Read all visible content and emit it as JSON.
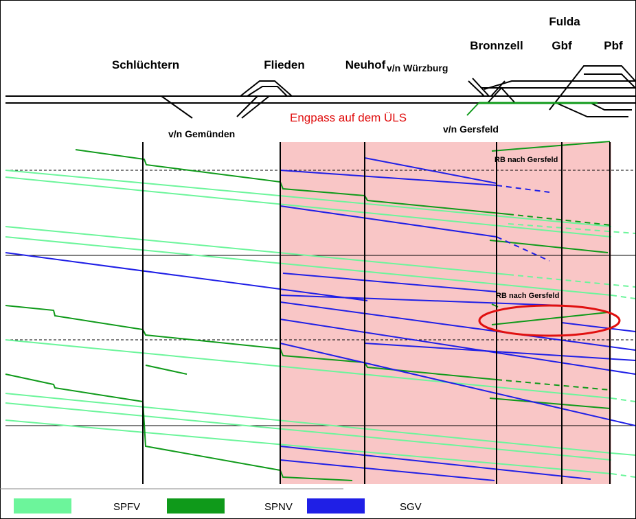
{
  "stations": [
    "Schlüchtern",
    "Flieden",
    "Neuhof",
    "Bronnzell",
    "Fulda",
    "Gbf",
    "Pbf"
  ],
  "directions": [
    "v/n Würzburg",
    "v/n Gemünden",
    "v/n Gersfeld"
  ],
  "annotation": "Engpass auf dem ÜLS",
  "train_labels": [
    "RB nach Gersfeld",
    "RB nach Gersfeld"
  ],
  "legend": [
    {
      "name": "SPFV",
      "color": "#6cf59b"
    },
    {
      "name": "SPNV",
      "color": "#0f9a1a"
    },
    {
      "name": "SGV",
      "color": "#1f1fe6"
    }
  ]
}
